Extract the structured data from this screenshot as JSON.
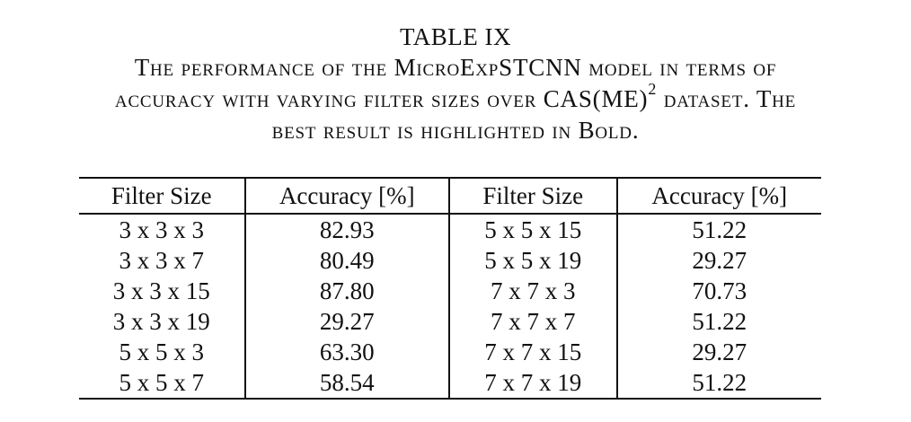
{
  "caption": {
    "title": "TABLE IX",
    "line1": "The performance of the MicroExpSTCNN model in terms of",
    "line2_pre": "accuracy with varying filter sizes over CAS(ME)",
    "line2_sup": "2",
    "line2_post": " dataset. The",
    "line3": "best result is highlighted in Bold."
  },
  "table": {
    "headers": [
      "Filter Size",
      "Accuracy [%]",
      "Filter Size",
      "Accuracy [%]"
    ],
    "rows": [
      [
        "3 x 3 x 3",
        "82.93",
        "5 x 5 x 15",
        "51.22"
      ],
      [
        "3 x 3 x 7",
        "80.49",
        "5 x 5 x 19",
        "29.27"
      ],
      [
        "3 x 3 x 15",
        "87.80",
        "7 x 7 x 3",
        "70.73"
      ],
      [
        "3 x 3 x 19",
        "29.27",
        "7 x 7 x 7",
        "51.22"
      ],
      [
        "5 x 5 x 3",
        "63.30",
        "7 x 7 x 15",
        "29.27"
      ],
      [
        "5 x 5 x 7",
        "58.54",
        "7 x 7 x 19",
        "51.22"
      ]
    ],
    "best_row": 2,
    "best_col": 1
  }
}
